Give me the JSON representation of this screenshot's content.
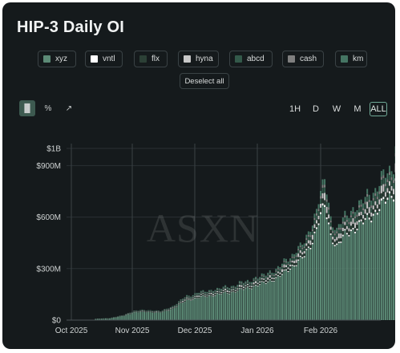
{
  "title": "HIP-3 Daily OI",
  "legend": [
    {
      "label": "xyz",
      "color": "#5c8a76"
    },
    {
      "label": "vntl",
      "color": "#ffffff"
    },
    {
      "label": "flx",
      "color": "#2c4036"
    },
    {
      "label": "hyna",
      "color": "#c8c8c8"
    },
    {
      "label": "abcd",
      "color": "#33594a"
    },
    {
      "label": "cash",
      "color": "#7f7f7f"
    },
    {
      "label": "km",
      "color": "#457563"
    }
  ],
  "deselect_label": "Deselect all",
  "modes": [
    {
      "icon": "bar-chart-icon",
      "glyph": "▐▌",
      "active": true
    },
    {
      "icon": "percent-icon",
      "glyph": "%",
      "active": false
    },
    {
      "icon": "line-chart-icon",
      "glyph": "↗",
      "active": false
    }
  ],
  "ranges": [
    {
      "label": "1H",
      "active": false
    },
    {
      "label": "D",
      "active": false
    },
    {
      "label": "W",
      "active": false
    },
    {
      "label": "M",
      "active": false
    },
    {
      "label": "ALL",
      "active": true
    }
  ],
  "watermark": "ASXN",
  "chart_data": {
    "type": "bar",
    "stacked": true,
    "y_ticks": [
      "$0",
      "$300M",
      "$600M",
      "$900M",
      "$1B"
    ],
    "y_tick_values": [
      0,
      300,
      600,
      900,
      1000
    ],
    "x_ticks": [
      "Oct 2025",
      "Nov 2025",
      "Dec 2025",
      "Jan 2026",
      "Feb 2026"
    ],
    "ylim": [
      0,
      1000
    ],
    "unit": "M USD",
    "x_start": "2025-10-13",
    "x_end": "2026-03-10",
    "anchors": [
      [
        "2025-10-13",
        8
      ],
      [
        "2025-10-20",
        12
      ],
      [
        "2025-10-27",
        30
      ],
      [
        "2025-11-01",
        55
      ],
      [
        "2025-11-08",
        58
      ],
      [
        "2025-11-14",
        52
      ],
      [
        "2025-11-20",
        80
      ],
      [
        "2025-11-27",
        140
      ],
      [
        "2025-12-05",
        165
      ],
      [
        "2025-12-12",
        180
      ],
      [
        "2025-12-20",
        200
      ],
      [
        "2025-12-28",
        230
      ],
      [
        "2026-01-05",
        265
      ],
      [
        "2026-01-12",
        310
      ],
      [
        "2026-01-18",
        380
      ],
      [
        "2026-01-24",
        450
      ],
      [
        "2026-01-28",
        560
      ],
      [
        "2026-01-31",
        700
      ],
      [
        "2026-02-03",
        800
      ],
      [
        "2026-02-06",
        600
      ],
      [
        "2026-02-09",
        520
      ],
      [
        "2026-02-13",
        600
      ],
      [
        "2026-02-18",
        650
      ],
      [
        "2026-02-23",
        700
      ],
      [
        "2026-02-28",
        760
      ],
      [
        "2026-03-05",
        840
      ],
      [
        "2026-03-09",
        900
      ],
      [
        "2026-03-10",
        1000
      ]
    ],
    "shares": [
      0.82,
      0.015,
      0.035,
      0.03,
      0.04,
      0.02,
      0.04
    ],
    "series": [
      "xyz",
      "vntl",
      "flx",
      "hyna",
      "abcd",
      "cash",
      "km"
    ]
  }
}
